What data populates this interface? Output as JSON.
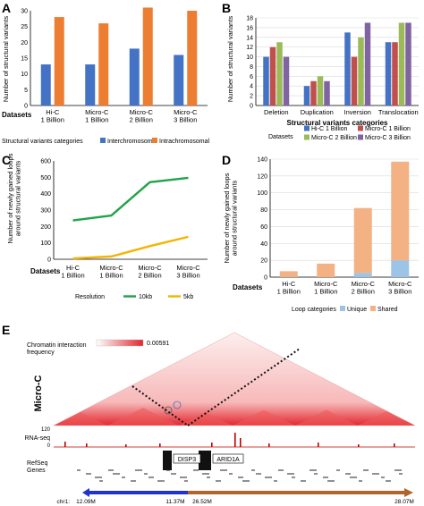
{
  "panel_labels": {
    "a": "A",
    "b": "B",
    "c": "C",
    "d": "D",
    "e": "E"
  },
  "colors": {
    "blue": "#4472c4",
    "orange": "#ed7d31",
    "red": "#c0504d",
    "green": "#9bbb59",
    "purple": "#8064a2",
    "lineGreen": "#22a34a",
    "lineYellow": "#f4b400",
    "unique": "#9dc3e6",
    "shared": "#f4b183",
    "heat": "#e3262e",
    "gene": "#1f1f1f",
    "chrBlue": "#2233cc",
    "chrBrown": "#b0662a"
  },
  "chart_data": [
    {
      "type": "bar",
      "title": "",
      "ylabel": "Number of structural variants",
      "xlabel": "Datasets",
      "ylim": [
        0,
        30
      ],
      "yticks": [
        0,
        5,
        10,
        15,
        20,
        25,
        30
      ],
      "categories": [
        "Hi-C\n1 Billion",
        "Micro-C\n1 Billion",
        "Micro-C\n2 Billion",
        "Micro-C\n3 Billion"
      ],
      "legend_title": "Structural variants categories",
      "series": [
        {
          "name": "Interchromosomal",
          "color": "#4472c4",
          "values": [
            13,
            13,
            18,
            16
          ]
        },
        {
          "name": "Intrachromosomal",
          "color": "#ed7d31",
          "values": [
            28,
            26,
            31,
            30
          ]
        }
      ]
    },
    {
      "type": "bar",
      "ylabel": "Number of structural variants",
      "xlabel": "Structural variants categories",
      "ylim": [
        0,
        18
      ],
      "yticks": [
        0,
        2,
        4,
        6,
        8,
        10,
        12,
        14,
        16,
        18
      ],
      "categories": [
        "Deletion",
        "Duplication",
        "Inversion",
        "Translocation"
      ],
      "legend_title": "Datasets",
      "series": [
        {
          "name": "Hi-C 1 Billion",
          "color": "#4472c4",
          "values": [
            10,
            4,
            15,
            13
          ]
        },
        {
          "name": "Micro-C 1 Billion",
          "color": "#c0504d",
          "values": [
            12,
            5,
            10,
            13
          ]
        },
        {
          "name": "Micro-C 2 Billion",
          "color": "#9bbb59",
          "values": [
            13,
            6,
            14,
            17
          ]
        },
        {
          "name": "Micro-C 3 Billion",
          "color": "#8064a2",
          "values": [
            10,
            5,
            17,
            17
          ]
        }
      ]
    },
    {
      "type": "line",
      "ylabel": "Number of newly gained loops\naround structural variants",
      "xlabel": "Datasets",
      "ylim": [
        0,
        600
      ],
      "yticks": [
        0,
        100,
        200,
        300,
        400,
        500,
        600
      ],
      "categories": [
        "Hi-C\n1 Billion",
        "Micro-C\n1 Billion",
        "Micro-C\n2 Billion",
        "Micro-C\n3 Billion"
      ],
      "legend_title": "Resolution",
      "series": [
        {
          "name": "10kb",
          "color": "#22a34a",
          "values": [
            237,
            267,
            470,
            497
          ]
        },
        {
          "name": "5kb",
          "color": "#f4b400",
          "values": [
            5,
            17,
            80,
            137
          ]
        }
      ]
    },
    {
      "type": "bar",
      "stacked": true,
      "ylabel": "Number of newly gained loops\naround structural variants",
      "xlabel": "Datasets",
      "ylim": [
        0,
        140
      ],
      "yticks": [
        0,
        20,
        40,
        60,
        80,
        100,
        120,
        140
      ],
      "categories": [
        "Hi-C\n1 Billion",
        "Micro-C\n1 Billion",
        "Micro-C\n2 Billion",
        "Micro-C\n3 Billion"
      ],
      "legend_title": "Loop categories",
      "series": [
        {
          "name": "Unique",
          "color": "#9dc3e6",
          "values": [
            0,
            0,
            5,
            20
          ]
        },
        {
          "name": "Shared",
          "color": "#f4b183",
          "values": [
            7,
            16,
            77,
            117
          ]
        }
      ]
    },
    {
      "type": "heatmap",
      "track_title": "Micro-C",
      "colorbar_label": "Chromatin interaction\nfrequency",
      "colorbar_max": "0.00591",
      "rnaseq_label": "RNA-seq",
      "rnaseq_ymax": "120",
      "rnaseq_ymin": "0",
      "refseq_label": "RefSeq\nGenes",
      "genes": [
        "DISP3",
        "ARID1A"
      ],
      "chr_label": "chr1:",
      "chr_coords": [
        "12.09M",
        "11.37M",
        "26.52M",
        "28.07M"
      ]
    }
  ]
}
